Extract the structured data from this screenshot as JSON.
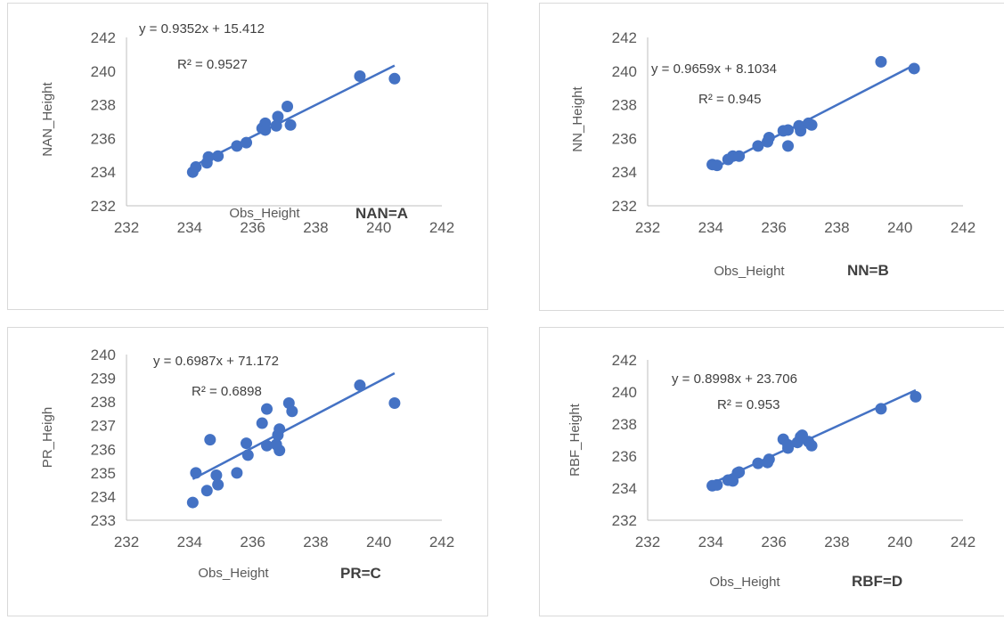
{
  "colors": {
    "series": "#4472c4",
    "axis": "#bfbfbf",
    "text": "#595959"
  },
  "chart_data": [
    {
      "type": "scatter",
      "xlabel": "Obs_Height",
      "ylabel": "NAN_Height",
      "tag": "NAN=A",
      "equation": "y = 0.9352x + 15.412",
      "r2_label": "R² = 0.9527",
      "trendline": {
        "slope": 0.9352,
        "intercept": 15.412,
        "x_range": [
          234.1,
          240.5
        ]
      },
      "xlim": [
        232,
        242
      ],
      "ylim": [
        232,
        242
      ],
      "xticks": [
        "232",
        "234",
        "236",
        "238",
        "240",
        "242"
      ],
      "yticks": [
        "232",
        "234",
        "236",
        "238",
        "240",
        "242"
      ],
      "grid": "none",
      "points": [
        [
          234.1,
          234.0
        ],
        [
          234.2,
          234.3
        ],
        [
          234.55,
          234.55
        ],
        [
          234.6,
          234.9
        ],
        [
          234.9,
          234.95
        ],
        [
          235.5,
          235.55
        ],
        [
          235.8,
          235.75
        ],
        [
          236.3,
          236.6
        ],
        [
          236.4,
          236.9
        ],
        [
          236.4,
          236.5
        ],
        [
          236.75,
          236.75
        ],
        [
          236.8,
          237.3
        ],
        [
          237.1,
          237.9
        ],
        [
          237.2,
          236.8
        ],
        [
          239.4,
          239.7
        ],
        [
          240.5,
          239.55
        ]
      ]
    },
    {
      "type": "scatter",
      "xlabel": "Obs_Height",
      "ylabel": "NN_Height",
      "tag": "NN=B",
      "equation": "y = 0.9659x + 8.1034",
      "r2_label": "R² = 0.945",
      "trendline": {
        "slope": 0.9659,
        "intercept": 8.1034,
        "x_range": [
          234.1,
          240.5
        ]
      },
      "xlim": [
        232,
        242
      ],
      "ylim": [
        232,
        242
      ],
      "xticks": [
        "232",
        "234",
        "236",
        "238",
        "240",
        "242"
      ],
      "yticks": [
        "232",
        "234",
        "236",
        "238",
        "240",
        "242"
      ],
      "grid": "none",
      "points": [
        [
          234.05,
          234.45
        ],
        [
          234.2,
          234.4
        ],
        [
          234.55,
          234.75
        ],
        [
          234.7,
          234.95
        ],
        [
          234.9,
          234.95
        ],
        [
          235.5,
          235.55
        ],
        [
          235.8,
          235.8
        ],
        [
          235.85,
          236.05
        ],
        [
          236.3,
          236.45
        ],
        [
          236.45,
          236.5
        ],
        [
          236.45,
          235.55
        ],
        [
          236.8,
          236.75
        ],
        [
          236.85,
          236.45
        ],
        [
          237.1,
          236.9
        ],
        [
          237.2,
          236.8
        ],
        [
          239.4,
          240.55
        ],
        [
          240.45,
          240.15
        ]
      ]
    },
    {
      "type": "scatter",
      "xlabel": "Obs_Height",
      "ylabel": "PR_Heigh",
      "tag": "PR=C",
      "equation": "y = 0.6987x + 71.172",
      "r2_label": "R² = 0.6898",
      "trendline": {
        "slope": 0.6987,
        "intercept": 71.172,
        "x_range": [
          234.1,
          240.5
        ]
      },
      "xlim": [
        232,
        242
      ],
      "ylim": [
        233,
        240
      ],
      "xticks": [
        "232",
        "234",
        "236",
        "238",
        "240",
        "242"
      ],
      "yticks": [
        "233",
        "234",
        "235",
        "236",
        "237",
        "238",
        "239",
        "240"
      ],
      "grid": "none",
      "points": [
        [
          234.1,
          233.75
        ],
        [
          234.2,
          235.0
        ],
        [
          234.55,
          234.25
        ],
        [
          234.65,
          236.4
        ],
        [
          234.85,
          234.9
        ],
        [
          234.9,
          234.5
        ],
        [
          235.5,
          235.0
        ],
        [
          235.8,
          236.25
        ],
        [
          235.85,
          235.75
        ],
        [
          236.3,
          237.1
        ],
        [
          236.45,
          237.7
        ],
        [
          236.45,
          236.15
        ],
        [
          236.75,
          236.2
        ],
        [
          236.8,
          236.6
        ],
        [
          236.85,
          236.85
        ],
        [
          236.85,
          235.95
        ],
        [
          237.15,
          237.95
        ],
        [
          237.25,
          237.6
        ],
        [
          239.4,
          238.7
        ],
        [
          240.5,
          237.95
        ]
      ]
    },
    {
      "type": "scatter",
      "xlabel": "Obs_Height",
      "ylabel": "RBF_Height",
      "tag": "RBF=D",
      "equation": "y = 0.8998x + 23.706",
      "r2_label": "R² = 0.953",
      "trendline": {
        "slope": 0.8998,
        "intercept": 23.706,
        "x_range": [
          234.1,
          240.5
        ]
      },
      "xlim": [
        232,
        242
      ],
      "ylim": [
        232,
        242
      ],
      "xticks": [
        "232",
        "234",
        "236",
        "238",
        "240",
        "242"
      ],
      "yticks": [
        "232",
        "234",
        "236",
        "238",
        "240",
        "242"
      ],
      "grid": "none",
      "points": [
        [
          234.05,
          234.15
        ],
        [
          234.2,
          234.2
        ],
        [
          234.55,
          234.5
        ],
        [
          234.7,
          234.45
        ],
        [
          234.85,
          234.95
        ],
        [
          234.9,
          235.0
        ],
        [
          235.5,
          235.55
        ],
        [
          235.8,
          235.6
        ],
        [
          235.85,
          235.8
        ],
        [
          236.3,
          237.05
        ],
        [
          236.45,
          236.5
        ],
        [
          236.45,
          236.7
        ],
        [
          236.75,
          236.85
        ],
        [
          236.85,
          237.2
        ],
        [
          236.9,
          237.3
        ],
        [
          237.1,
          236.9
        ],
        [
          237.2,
          236.65
        ],
        [
          239.4,
          238.95
        ],
        [
          240.5,
          239.7
        ]
      ]
    }
  ]
}
